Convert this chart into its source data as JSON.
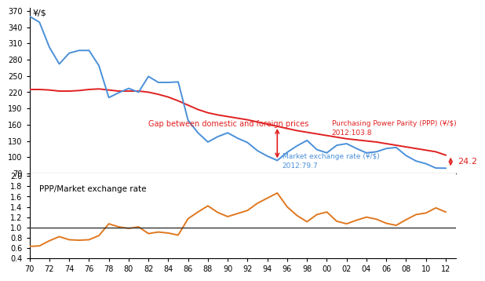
{
  "years_raw": [
    70,
    71,
    72,
    73,
    74,
    75,
    76,
    77,
    78,
    79,
    80,
    81,
    82,
    83,
    84,
    85,
    86,
    87,
    88,
    89,
    90,
    91,
    92,
    93,
    94,
    95,
    96,
    97,
    98,
    99,
    0,
    1,
    2,
    3,
    4,
    5,
    6,
    7,
    8,
    9,
    10,
    11,
    12
  ],
  "ppp": [
    225,
    225,
    224,
    222,
    222,
    223,
    225,
    226,
    224,
    222,
    222,
    222,
    220,
    216,
    211,
    204,
    196,
    188,
    182,
    178,
    175,
    172,
    169,
    165,
    161,
    157,
    153,
    149,
    146,
    143,
    140,
    137,
    134,
    132,
    130,
    128,
    125,
    122,
    119,
    116,
    113,
    110,
    103.8
  ],
  "market": [
    360,
    349,
    303,
    272,
    292,
    297,
    297,
    269,
    210,
    219,
    227,
    220,
    249,
    238,
    238,
    239,
    168,
    145,
    128,
    138,
    145,
    135,
    127,
    112,
    102,
    94,
    109,
    121,
    131,
    114,
    108,
    122,
    125,
    116,
    108,
    110,
    116,
    118,
    103,
    93,
    88,
    80,
    79.7
  ],
  "ratio": [
    0.63,
    0.64,
    0.74,
    0.82,
    0.76,
    0.75,
    0.76,
    0.84,
    1.07,
    1.01,
    0.98,
    1.01,
    0.88,
    0.91,
    0.89,
    0.85,
    1.17,
    1.3,
    1.42,
    1.29,
    1.21,
    1.27,
    1.33,
    1.47,
    1.57,
    1.67,
    1.4,
    1.23,
    1.11,
    1.25,
    1.3,
    1.12,
    1.07,
    1.14,
    1.2,
    1.16,
    1.08,
    1.04,
    1.15,
    1.25,
    1.28,
    1.38,
    1.3
  ],
  "ppp_color": "#e02020",
  "market_color": "#4a90d9",
  "ratio_color": "#e07820",
  "bg_color": "#ffffff",
  "upper_ylim": [
    70,
    375
  ],
  "upper_yticks": [
    70,
    100,
    130,
    160,
    190,
    220,
    250,
    280,
    310,
    340,
    370
  ],
  "lower_ylim": [
    0.4,
    2.05
  ],
  "lower_yticks": [
    0.4,
    0.6,
    0.8,
    1.0,
    1.2,
    1.4,
    1.6,
    1.8,
    2.0
  ],
  "xtick_labels": [
    "70",
    "72",
    "74",
    "76",
    "78",
    "80",
    "82",
    "84",
    "86",
    "88",
    "90",
    "92",
    "94",
    "96",
    "98",
    "00",
    "02",
    "04",
    "06",
    "08",
    "10",
    "12"
  ],
  "gap_label": "Gap between domestic and foreign prices",
  "ppp_label": "Purchasing Power Parity (PPP) (¥/$)",
  "ppp_end_label": "2012:103.8",
  "market_label": "Market exchange rate (¥/$)",
  "market_end_label": "2012:79.7",
  "diff_label": "24.2",
  "ratio_label": "PPP/Market exchange rate",
  "upper_ylabel": "¥/$"
}
